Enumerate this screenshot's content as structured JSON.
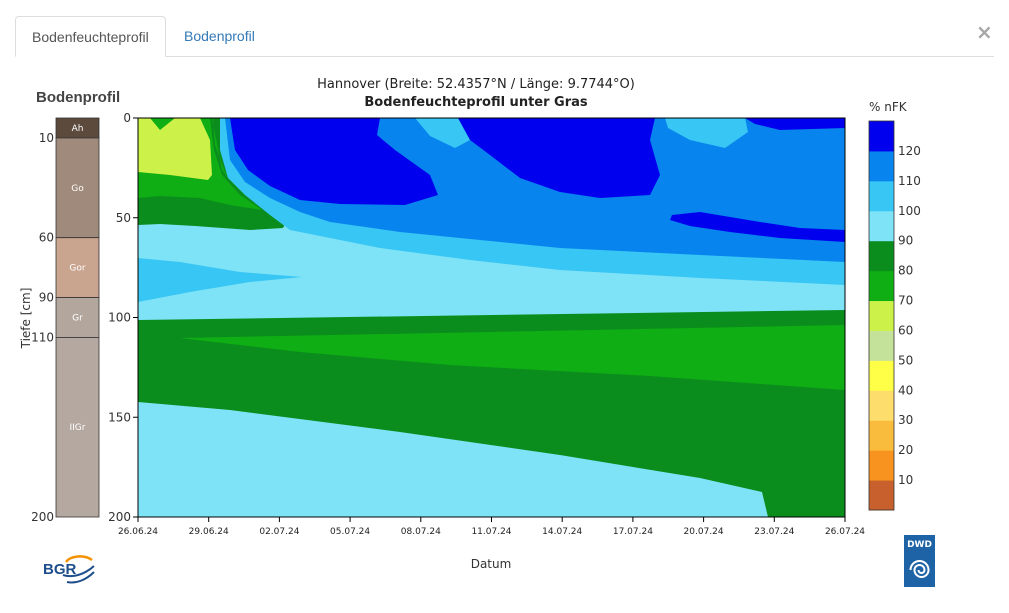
{
  "tabs": [
    {
      "label": "Bodenfeuchteprofil",
      "active": true
    },
    {
      "label": "Bodenprofil",
      "active": false
    }
  ],
  "close_symbol": "×",
  "logos": {
    "left": "BGR",
    "right": "DWD"
  },
  "chart_data": {
    "type": "heatmap",
    "title": "Hannover (Breite: 52.4357°N / Länge: 9.7744°O)",
    "subtitle": "Bodenfeuchteprofil unter Gras",
    "xlabel": "Datum",
    "ylabel": "Tiefe [cm]",
    "x_ticks": [
      "26.06.24",
      "29.06.24",
      "02.07.24",
      "05.07.24",
      "08.07.24",
      "11.07.24",
      "14.07.24",
      "17.07.24",
      "20.07.24",
      "23.07.24",
      "26.07.24"
    ],
    "y_ticks": [
      0,
      50,
      100,
      150,
      200
    ],
    "ylim": [
      0,
      200
    ],
    "colorbar": {
      "label": "% nFK",
      "ticks": [
        10,
        20,
        30,
        40,
        50,
        60,
        70,
        80,
        90,
        100,
        110,
        120
      ],
      "colors": [
        "#c8602e",
        "#f7931e",
        "#f9bc3c",
        "#fddd6b",
        "#ffff47",
        "#c5e29a",
        "#ccf24a",
        "#0fae14",
        "#0b8d1d",
        "#7fe3f7",
        "#38c6f4",
        "#0884ee",
        "#0000ee"
      ]
    },
    "soil_profile": {
      "title": "Bodenprofil",
      "horizons": [
        {
          "name": "Ah",
          "top": 0,
          "bottom": 10,
          "color": "#5c4a3d"
        },
        {
          "name": "Go",
          "top": 10,
          "bottom": 60,
          "color": "#a08a7b"
        },
        {
          "name": "Gor",
          "top": 60,
          "bottom": 90,
          "color": "#c9a48e"
        },
        {
          "name": "Gr",
          "top": 90,
          "bottom": 110,
          "color": "#b2a69d"
        },
        {
          "name": "IIGr",
          "top": 110,
          "bottom": 200,
          "color": "#b4a8a0"
        }
      ],
      "depth_labels": [
        10,
        60,
        90,
        110,
        200
      ]
    }
  }
}
